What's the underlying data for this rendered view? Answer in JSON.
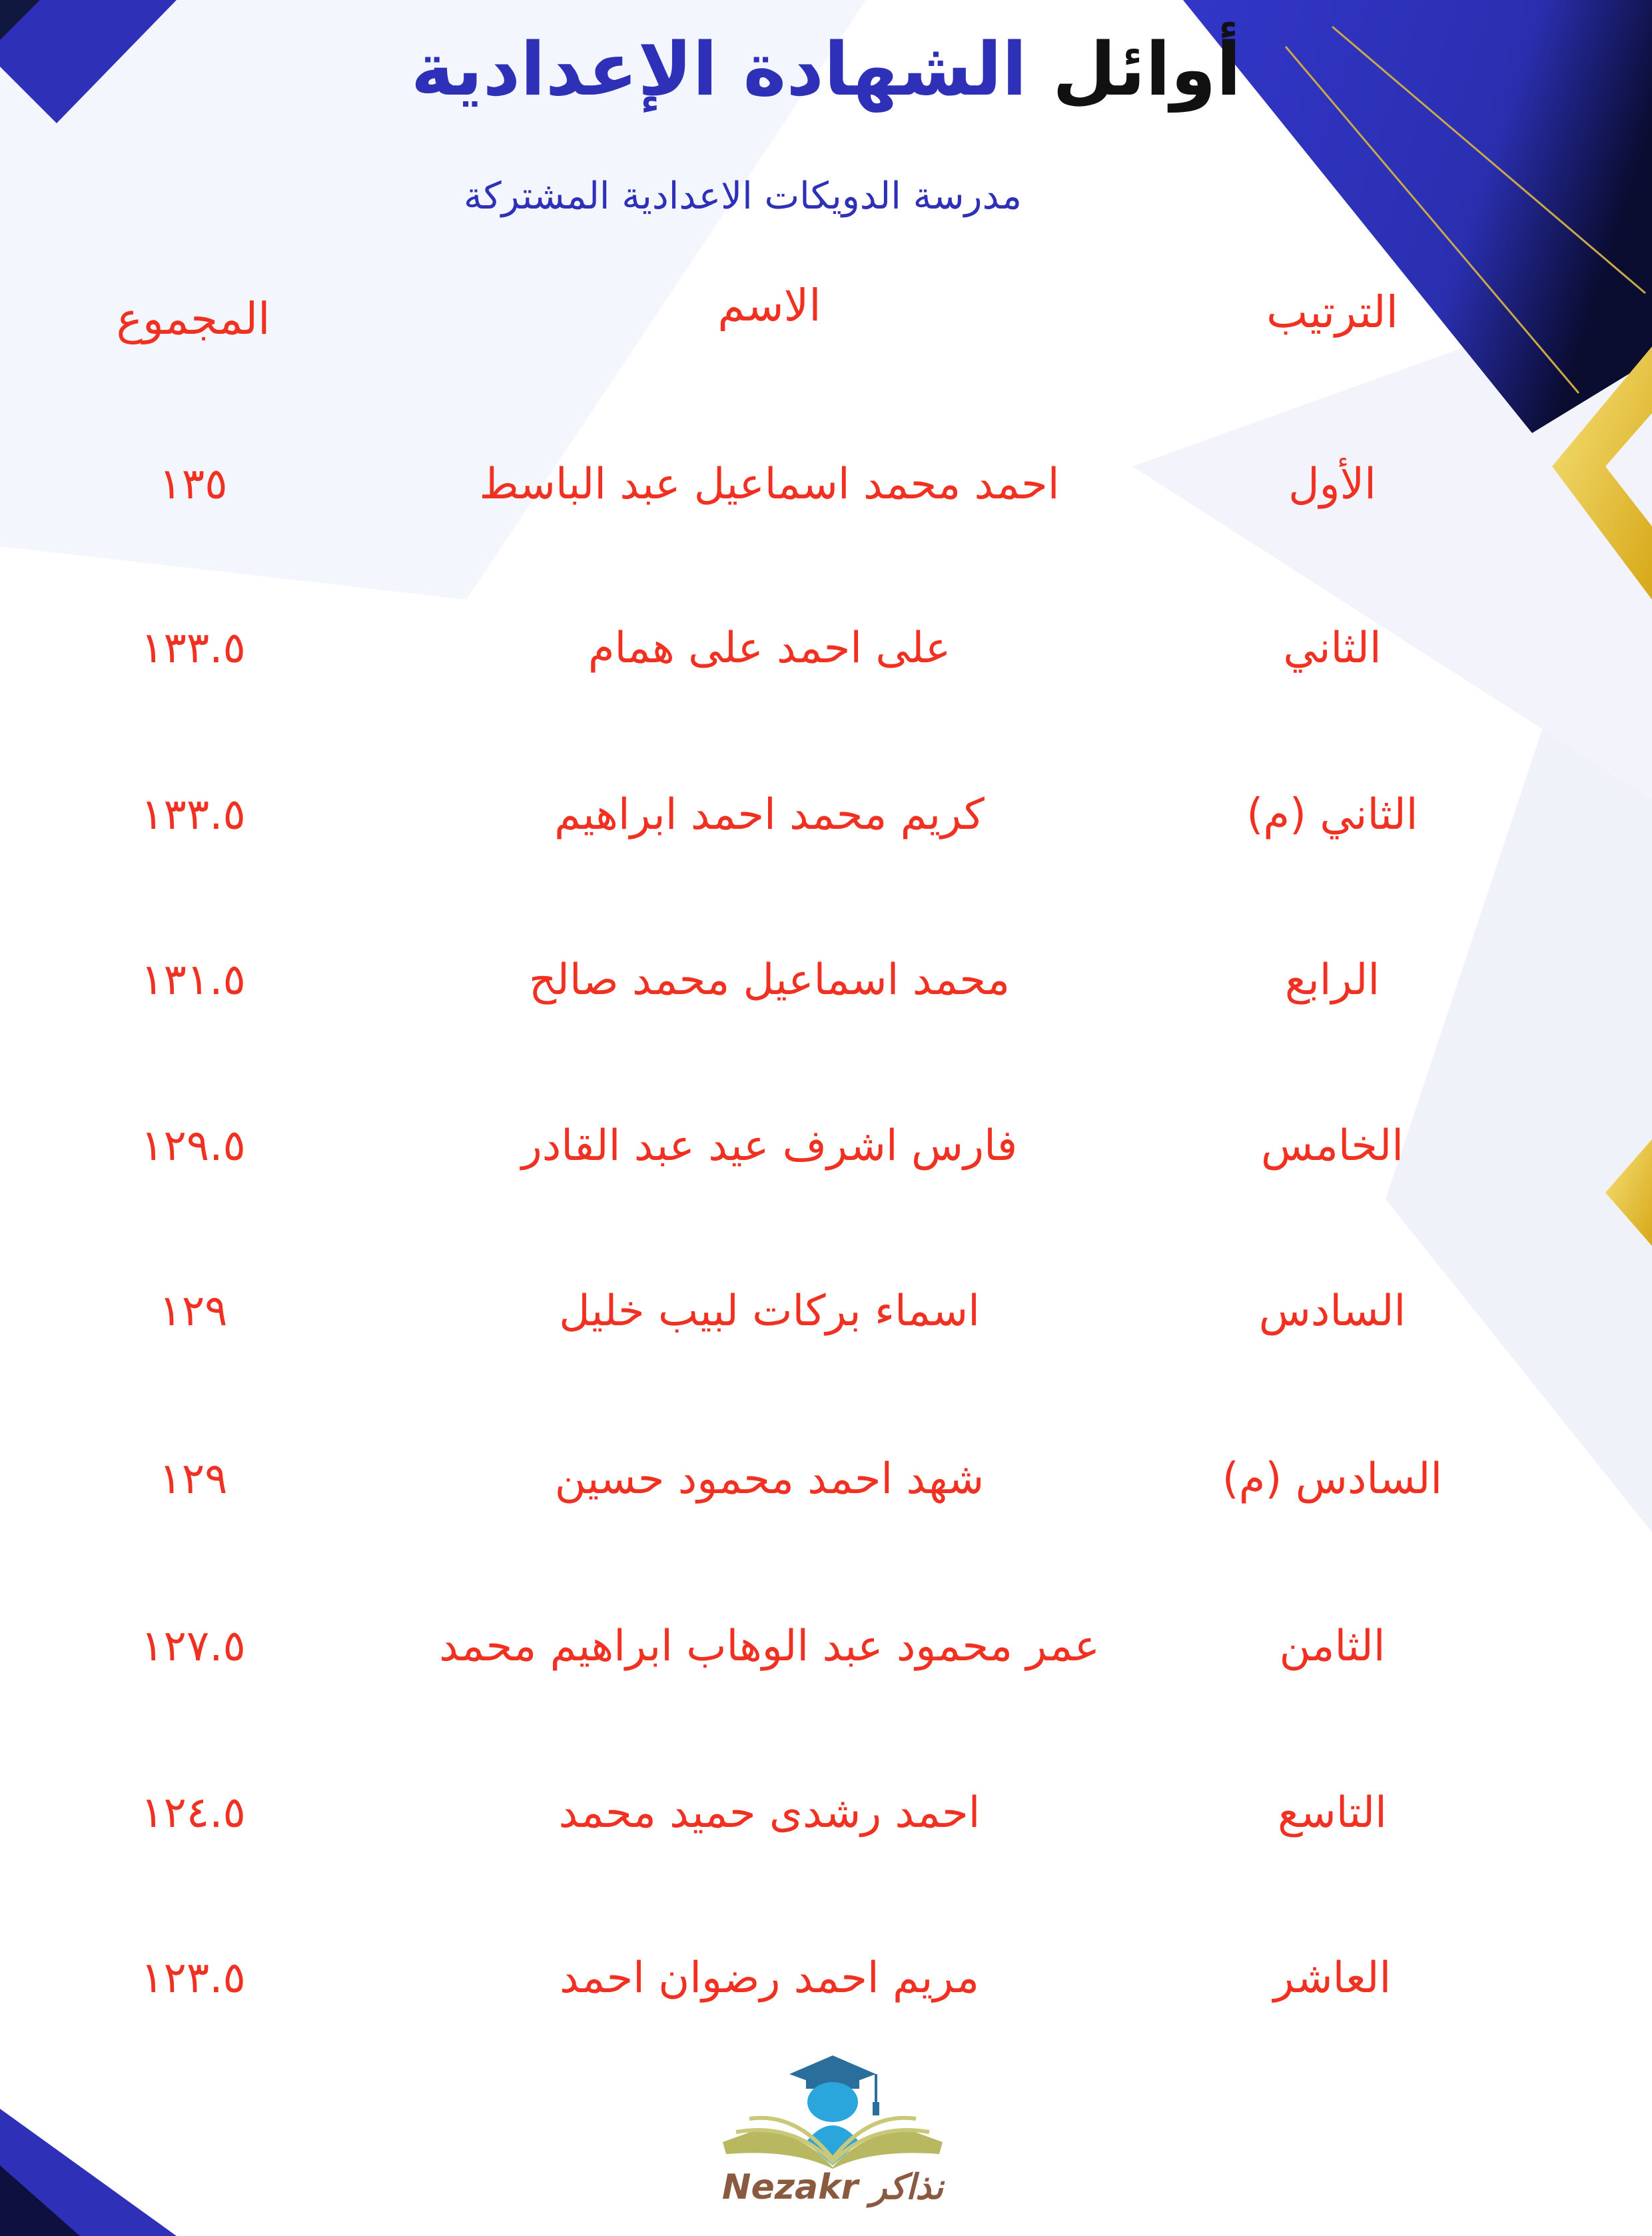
{
  "header": {
    "title_part1": "أوائل",
    "title_part2": "الشهادة الإعدادية",
    "subtitle": "مدرسة الدويكات الاعدادية المشتركة"
  },
  "table": {
    "columns": {
      "rank": "الترتيب",
      "name": "الاسم",
      "total": "المجموع"
    },
    "rows": [
      {
        "rank": "الأول",
        "name": "احمد محمد اسماعيل عبد الباسط",
        "total": "١٣٥"
      },
      {
        "rank": "الثاني",
        "name": "على احمد على همام",
        "total": "١٣٣.٥"
      },
      {
        "rank": "الثاني (م)",
        "name": "كريم محمد احمد ابراهيم",
        "total": "١٣٣.٥"
      },
      {
        "rank": "الرابع",
        "name": "محمد اسماعيل محمد صالح",
        "total": "١٣١.٥"
      },
      {
        "rank": "الخامس",
        "name": "فارس اشرف عيد عبد القادر",
        "total": "١٢٩.٥"
      },
      {
        "rank": "السادس",
        "name": "اسماء بركات لبيب خليل",
        "total": "١٢٩"
      },
      {
        "rank": "السادس (م)",
        "name": "شهد احمد محمود حسين",
        "total": "١٢٩"
      },
      {
        "rank": "الثامن",
        "name": "عمر محمود عبد الوهاب ابراهيم محمد",
        "total": "١٢٧.٥"
      },
      {
        "rank": "التاسع",
        "name": "احمد رشدى حميد محمد",
        "total": "١٢٤.٥"
      },
      {
        "rank": "العاشر",
        "name": "مريم احمد رضوان احمد",
        "total": "١٢٣.٥"
      }
    ]
  },
  "logo": {
    "text": "Nezakr نذاكر"
  },
  "colors": {
    "accent_blue": "#2e31b8",
    "text_red": "#f03020",
    "gold": "#e8c22a"
  }
}
